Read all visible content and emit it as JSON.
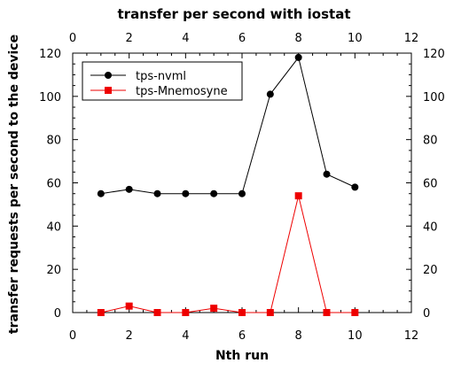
{
  "chart_data": {
    "type": "line",
    "title": "transfer per second with iostat",
    "xlabel": "Nth run",
    "ylabel": "transfer requests per second to the device",
    "xlim": [
      0,
      12
    ],
    "ylim": [
      0,
      120
    ],
    "x_ticks": [
      0,
      2,
      4,
      6,
      8,
      10,
      12
    ],
    "y_ticks": [
      0,
      20,
      40,
      60,
      80,
      100,
      120
    ],
    "grid": false,
    "legend_position": "top-left",
    "x": [
      1,
      2,
      3,
      4,
      5,
      6,
      7,
      8,
      9,
      10
    ],
    "series": [
      {
        "name": "tps-nvml",
        "color": "#000000",
        "marker": "circle",
        "values": [
          55,
          57,
          55,
          55,
          55,
          55,
          101,
          118,
          64,
          58
        ]
      },
      {
        "name": "tps-Mnemosyne",
        "color": "#ee0000",
        "marker": "square",
        "values": [
          0,
          3,
          0,
          0,
          2,
          0,
          0,
          54,
          0,
          0
        ]
      }
    ]
  }
}
